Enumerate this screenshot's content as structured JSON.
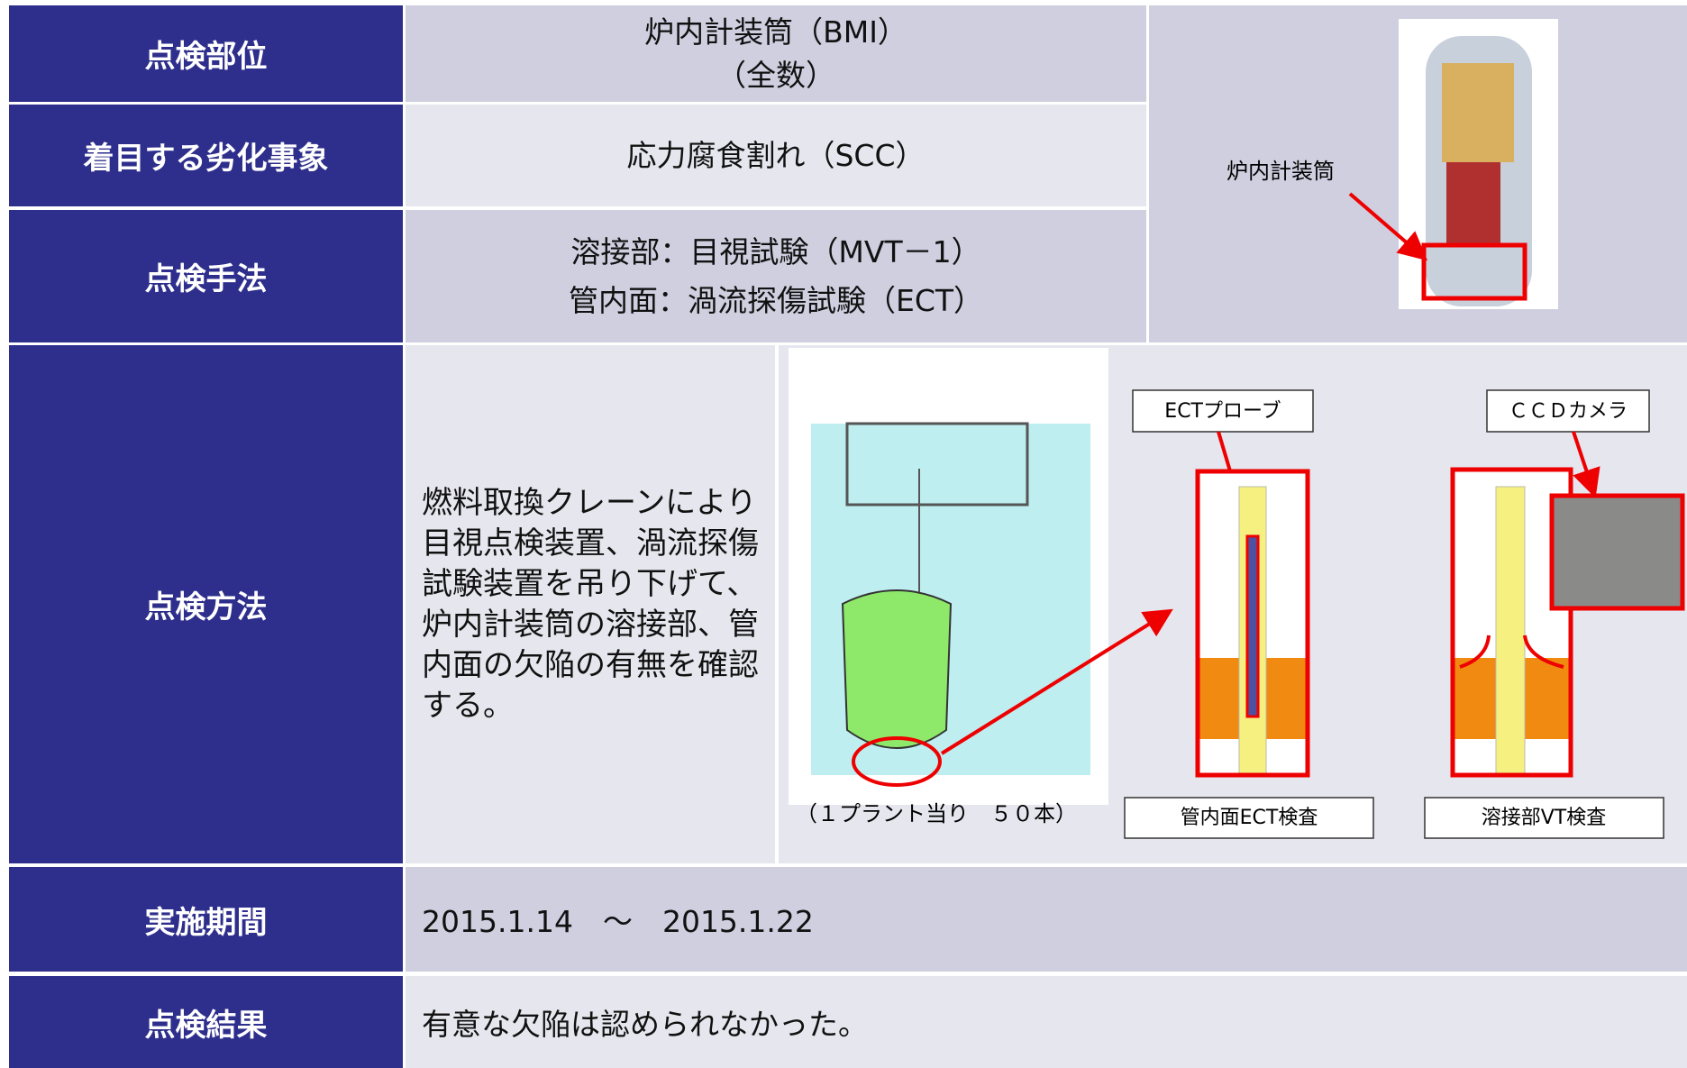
{
  "table": {
    "rows": [
      {
        "header": "点検部位",
        "content": [
          "炉内計装筒（BMI）",
          "（全数）"
        ]
      },
      {
        "header": "着目する劣化事象",
        "content": [
          "応力腐食割れ（SCC）"
        ]
      },
      {
        "header": "点検手法",
        "content": [
          "溶接部：目視試験（MVT－1）",
          "管内面：渦流探傷試験（ECT）"
        ]
      },
      {
        "header": "点検方法",
        "content": [
          "燃料取換クレーンにより目視点検装置、渦流探傷試験装置を吊り下げて、炉内計装筒の溶接部、管内面の欠陥の有無を確認する。"
        ]
      },
      {
        "header": "実施期間",
        "content": [
          "2015.1.14　～　2015.1.22"
        ]
      },
      {
        "header": "点検結果",
        "content": [
          "有意な欠陥は認められなかった。"
        ]
      }
    ]
  },
  "figures": {
    "reactor_label": "炉内計装筒",
    "plant_count": "（１プラント当り　５０本）",
    "probe_label": "ECTプローブ",
    "camera_label": "ＣＣＤカメラ",
    "ect_caption": "管内面ECT検査",
    "vt_caption": "溶接部VT検査"
  }
}
